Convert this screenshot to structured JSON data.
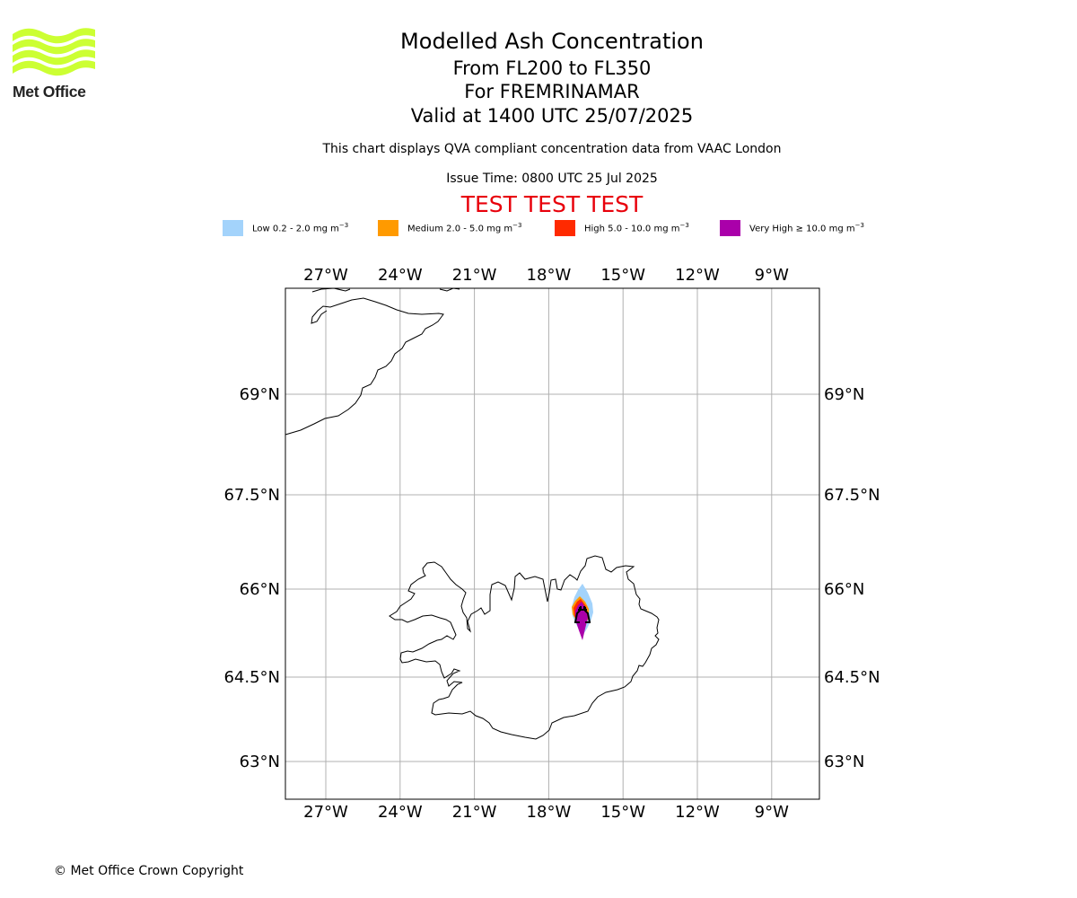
{
  "logo": {
    "text": "Met Office",
    "color": "#ccff33"
  },
  "header": {
    "title": "Modelled Ash Concentration",
    "flight_levels": "From FL200 to FL350",
    "volcano": "For FREMRINAMAR",
    "valid_time": "Valid at 1400 UTC 25/07/2025",
    "description": "This chart displays QVA compliant concentration data from VAAC London",
    "issue_time": "Issue Time: 0800 UTC 25 Jul 2025",
    "test_banner": "TEST TEST TEST"
  },
  "legend": [
    {
      "label": "Low 0.2 - 2.0 mg m",
      "sup": "−3",
      "color": "#a3d3fb"
    },
    {
      "label": "Medium 2.0 - 5.0 mg m",
      "sup": "−3",
      "color": "#ff9a00"
    },
    {
      "label": "High 5.0 - 10.0 mg m",
      "sup": "−3",
      "color": "#ff2a00"
    },
    {
      "label": "Very High  ≥  10.0 mg m",
      "sup": "−3",
      "color": "#aa00aa"
    }
  ],
  "map": {
    "extent": {
      "lon": [
        -28.6,
        -6.9
      ],
      "lat": [
        62.4,
        70.6
      ]
    },
    "lon_ticks": [
      {
        "value": -27,
        "label": "27°W"
      },
      {
        "value": -24,
        "label": "24°W"
      },
      {
        "value": -21,
        "label": "21°W"
      },
      {
        "value": -18,
        "label": "18°W"
      },
      {
        "value": -15,
        "label": "15°W"
      },
      {
        "value": -12,
        "label": "12°W"
      },
      {
        "value": -9,
        "label": "9°W"
      }
    ],
    "lat_ticks": [
      {
        "value": 69,
        "label": "69°N"
      },
      {
        "value": 67.5,
        "label": "67.5°N"
      },
      {
        "value": 66,
        "label": "66°N"
      },
      {
        "value": 64.5,
        "label": "64.5°N"
      },
      {
        "value": 63,
        "label": "63°N"
      }
    ],
    "gridlines": true,
    "volcano_location": {
      "lon": -16.55,
      "lat": 65.43
    }
  },
  "footer": {
    "copyright": "© Met Office Crown Copyright"
  }
}
